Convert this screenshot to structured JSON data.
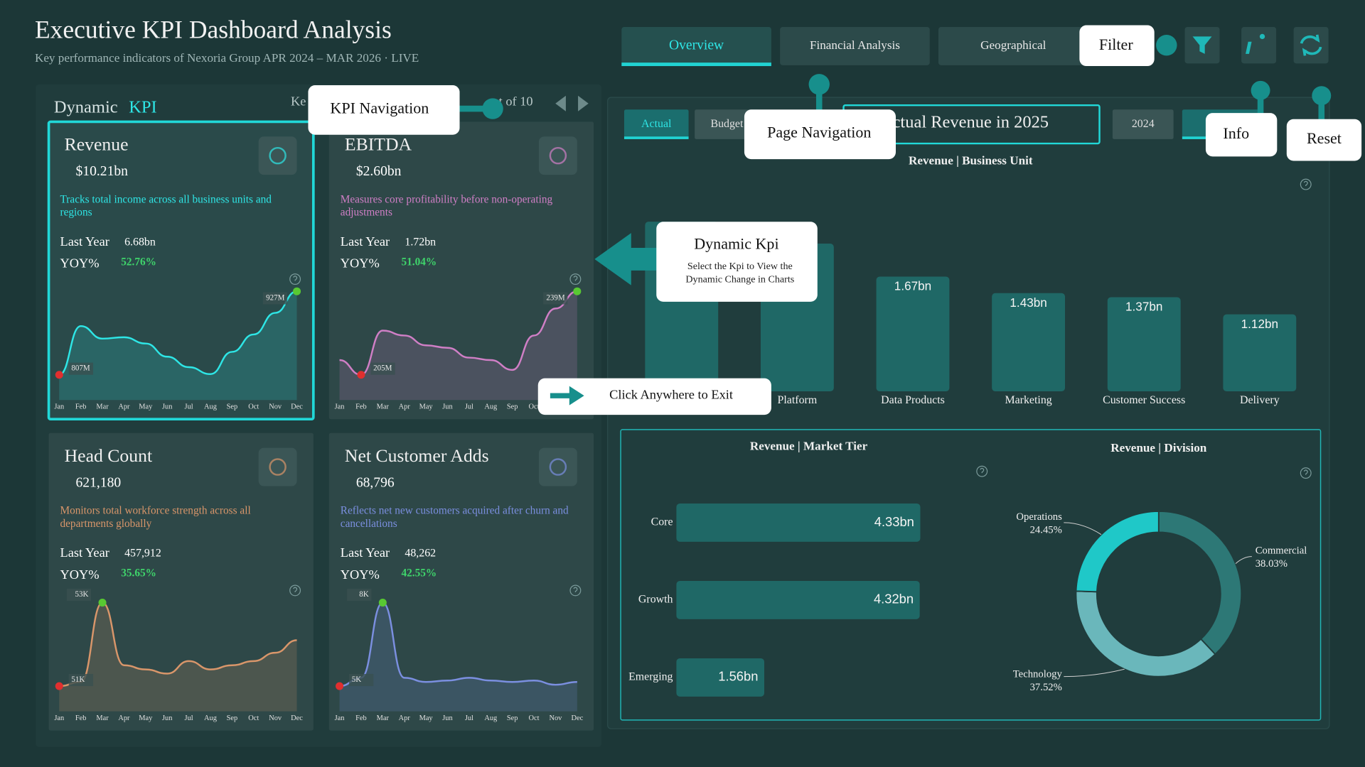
{
  "header": {
    "title": "Executive KPI Dashboard Analysis",
    "subtitle": "Key performance indicators  of  Nexoria Group  APR 2024 – MAR 2026  ·  LIVE"
  },
  "nav": {
    "tabs": [
      "Overview",
      "Financial Analysis",
      "Geographical"
    ]
  },
  "kpi_panel": {
    "title": "Dynamic",
    "title_accent": "KPI",
    "hidden_prefix": "Ke",
    "pager": "t of 10"
  },
  "labels": {
    "last_year": "Last Year",
    "yoy": "YOY%"
  },
  "months": [
    "Jan",
    "Feb",
    "Mar",
    "Apr",
    "May",
    "Jun",
    "Jul",
    "Aug",
    "Sep",
    "Oct",
    "Nov",
    "Dec"
  ],
  "kpis": [
    {
      "name": "Revenue",
      "value": "$10.21bn",
      "description": "Tracks total income across all business units and regions",
      "last_year": "6.68bn",
      "yoy": "52.76%",
      "color": "#2ee6e6",
      "chart": {
        "type": "line",
        "values": [
          807,
          877,
          859,
          861,
          852,
          833,
          818,
          808,
          840,
          865,
          896,
          927
        ],
        "value_labels": [
          "807M",
          null,
          null,
          null,
          null,
          null,
          null,
          null,
          null,
          null,
          null,
          "927M"
        ]
      }
    },
    {
      "name": "EBITDA",
      "value": "$2.60bn",
      "description": "Measures core profitability before non-operating adjustments",
      "last_year": "1.72bn",
      "yoy": "51.04%",
      "color": "#d07fc6",
      "chart": {
        "type": "line",
        "values": [
          211,
          205,
          223,
          221,
          217,
          216,
          212,
          211,
          207,
          221,
          232,
          239
        ],
        "value_labels": [
          null,
          "205M",
          null,
          null,
          null,
          null,
          null,
          null,
          null,
          null,
          null,
          "239M"
        ]
      }
    },
    {
      "name": "Head Count",
      "value": "621,180",
      "description": "Monitors total workforce strength across all departments globally",
      "last_year": "457,912",
      "yoy": "35.65%",
      "color": "#d9966a",
      "chart": {
        "type": "line",
        "values": [
          51000,
          51100,
          53000,
          51500,
          51400,
          51300,
          51600,
          51400,
          51500,
          51600,
          51800,
          52100
        ],
        "value_labels": [
          "51K",
          null,
          "53K",
          null,
          null,
          null,
          null,
          null,
          null,
          null,
          null,
          null
        ]
      }
    },
    {
      "name": "Net Customer Adds",
      "value": "68,796",
      "description": "Reflects net new customers acquired after churn and cancellations",
      "last_year": "48,262",
      "yoy": "42.55%",
      "color": "#7b8fe0",
      "chart": {
        "type": "line",
        "values": [
          5000,
          5300,
          8000,
          5300,
          5150,
          5200,
          5300,
          5200,
          5150,
          5200,
          5050,
          5150
        ],
        "value_labels": [
          "5K",
          null,
          "8K",
          null,
          null,
          null,
          null,
          null,
          null,
          null,
          null,
          null
        ]
      }
    }
  ],
  "filters": {
    "scenarios": [
      "Actual",
      "Budget"
    ],
    "selection_title": "ctual Revenue in 2025",
    "years": [
      "2024"
    ]
  },
  "business_unit": {
    "type": "bar",
    "title": "Revenue | Business Unit",
    "color": "#1f6866",
    "categories": [
      null,
      "Platform",
      "Data Products",
      "Marketing",
      "Customer Success",
      "Delivery"
    ],
    "values": [
      2.47,
      2.15,
      1.67,
      1.43,
      1.37,
      1.12
    ],
    "value_labels": [
      null,
      null,
      "1.67bn",
      "1.43bn",
      "1.37bn",
      "1.12bn"
    ]
  },
  "market_tier": {
    "type": "bar",
    "orientation": "horizontal",
    "title": "Revenue | Market Tier",
    "color": "#1f6866",
    "categories": [
      "Core",
      "Growth",
      "Emerging"
    ],
    "values": [
      4.33,
      4.32,
      1.56
    ],
    "value_labels": [
      "4.33bn",
      "4.32bn",
      "1.56bn"
    ]
  },
  "division": {
    "type": "pie",
    "title": "Revenue | Division",
    "categories": [
      "Commercial",
      "Technology",
      "Operations"
    ],
    "values": [
      38.03,
      37.52,
      24.45
    ],
    "value_labels": [
      "38.03%",
      "37.52%",
      "24.45%"
    ],
    "colors": [
      "#2d7876",
      "#6ab7bb",
      "#1fc8c8"
    ]
  },
  "callouts": {
    "kpi_navigation": "KPI Navigation",
    "page_navigation": "Page Navigation",
    "filter": "Filter",
    "info": "Info",
    "reset": "Reset",
    "dynamic_kpi": {
      "title": "Dynamic Kpi",
      "body_lines": [
        "Select the Kpi to View the",
        "Dynamic Change in Charts"
      ]
    },
    "exit": "Click Anywhere to Exit"
  }
}
